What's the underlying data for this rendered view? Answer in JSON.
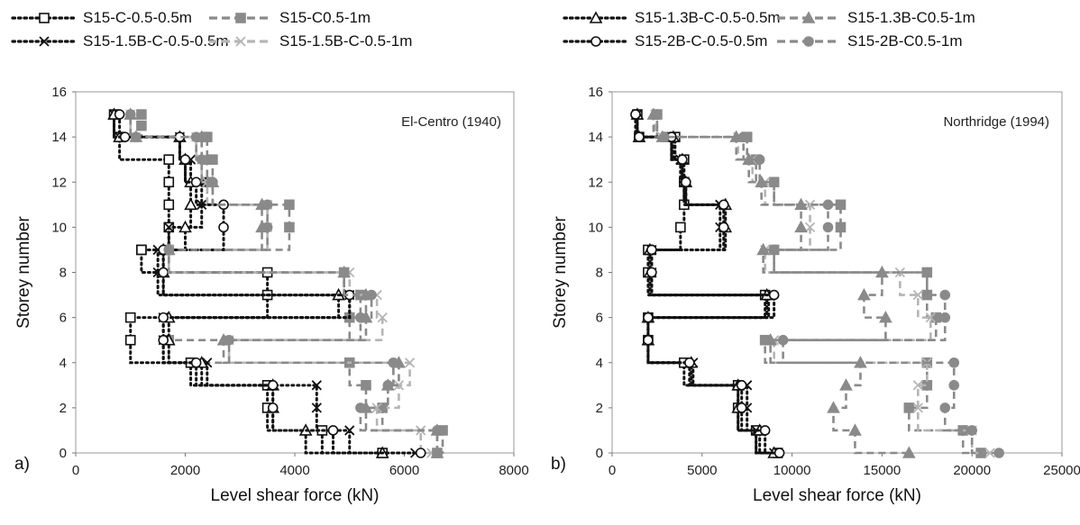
{
  "legend": [
    {
      "label": "S15-C-0.5-0.5m",
      "style": "dotted",
      "marker": "square-open",
      "color": "#111111"
    },
    {
      "label": "S15-C0.5-1m",
      "style": "dashed",
      "marker": "square",
      "color": "#8a8a8a"
    },
    {
      "label": "S15-1.5B-C-0.5-0.5m",
      "style": "dotted",
      "marker": "x",
      "color": "#111111"
    },
    {
      "label": "S15-1.5B-C-0.5-1m",
      "style": "dashed",
      "marker": "x",
      "color": "#b5b5b5"
    },
    {
      "label": "S15-1.3B-C-0.5-0.5m",
      "style": "dotted",
      "marker": "triangle-open",
      "color": "#111111"
    },
    {
      "label": "S15-1.3B-C0.5-1m",
      "style": "dashed",
      "marker": "triangle",
      "color": "#8a8a8a"
    },
    {
      "label": "S15-2B-C-0.5-0.5m",
      "style": "dotted",
      "marker": "circle-open",
      "color": "#111111"
    },
    {
      "label": "S15-2B-C0.5-1m",
      "style": "dashed",
      "marker": "circle",
      "color": "#8a8a8a"
    }
  ],
  "chart_data": [
    {
      "type": "line",
      "panel_label": "a)",
      "annotation": "El-Centro (1940)",
      "xlabel": "Level shear force (kN)",
      "ylabel": "Storey number",
      "xlim": [
        0,
        8000
      ],
      "ylim": [
        0,
        16
      ],
      "xticks": [
        "0",
        "2000",
        "4000",
        "6000",
        "8000"
      ],
      "yticks": [
        "0",
        "2",
        "4",
        "6",
        "8",
        "10",
        "12",
        "14",
        "16"
      ],
      "grid": false,
      "series": [
        {
          "name": "S15-C-0.5-0.5m",
          "x": [
            5600,
            4500,
            3500,
            3500,
            2100,
            1000,
            1000,
            3500,
            3500,
            1200,
            1200,
            1700,
            1700,
            1700,
            1700,
            800,
            700
          ],
          "y": [
            0,
            1,
            2,
            3,
            4,
            5,
            6,
            7,
            8,
            9,
            9,
            10,
            11,
            12,
            13,
            14,
            15
          ]
        },
        {
          "name": "S15-C0.5-1m",
          "x": [
            6600,
            6700,
            5600,
            5300,
            5000,
            1700,
            5000,
            5200,
            4900,
            1700,
            3900,
            3900,
            2400,
            2500,
            2400,
            1200,
            1200
          ],
          "y": [
            0,
            1,
            2,
            3,
            4,
            5,
            6,
            7,
            8,
            9,
            10,
            11,
            12,
            13,
            14,
            14.5,
            15
          ]
        },
        {
          "name": "S15-1.5B-C-0.5-0.5m",
          "x": [
            6200,
            5000,
            4400,
            4400,
            2400,
            1600,
            1600,
            5000,
            1500,
            1500,
            1700,
            2300,
            2300,
            2100,
            1900,
            800,
            700
          ],
          "y": [
            0,
            1,
            2,
            3,
            4,
            5,
            6,
            7,
            8,
            9,
            10,
            11,
            12,
            13,
            14,
            14,
            15
          ]
        },
        {
          "name": "S15-1.5B-C-0.5-1m",
          "x": [
            6500,
            6300,
            5500,
            5900,
            6100,
            2800,
            5600,
            5500,
            5000,
            1700,
            3500,
            3500,
            2400,
            2300,
            2200,
            1100,
            1000
          ],
          "y": [
            0,
            1,
            2,
            3,
            4,
            5,
            6,
            7,
            8,
            9,
            10,
            11,
            12,
            13,
            14,
            14,
            15
          ]
        },
        {
          "name": "S15-1.3B-C-0.5-0.5m",
          "x": [
            5600,
            4200,
            3600,
            3600,
            2300,
            1700,
            1700,
            4800,
            1600,
            1600,
            2000,
            2100,
            2100,
            2000,
            1900,
            800,
            700
          ],
          "y": [
            0,
            1,
            2,
            3,
            4,
            5,
            6,
            7,
            8,
            9,
            10,
            11,
            12,
            13,
            14,
            14,
            15
          ]
        },
        {
          "name": "S15-1.3B-C0.5-1m",
          "x": [
            6600,
            6600,
            5300,
            5700,
            5900,
            2700,
            5300,
            5300,
            4900,
            1700,
            3400,
            3400,
            2500,
            2400,
            2300,
            1100,
            1000
          ],
          "y": [
            0,
            1,
            2,
            3,
            4,
            5,
            6,
            7,
            8,
            9,
            10,
            11,
            12,
            13,
            14,
            14,
            15
          ]
        },
        {
          "name": "S15-2B-C-0.5-0.5m",
          "x": [
            6300,
            4700,
            3600,
            3600,
            2200,
            1600,
            1600,
            5000,
            1600,
            1600,
            2700,
            2700,
            2200,
            2000,
            1900,
            900,
            800
          ],
          "y": [
            0,
            1,
            2,
            3,
            4,
            5,
            6,
            7,
            8,
            9,
            10,
            11,
            12,
            13,
            14,
            14,
            15
          ]
        },
        {
          "name": "S15-2B-C0.5-1m",
          "x": [
            6600,
            6600,
            5200,
            5700,
            5800,
            2800,
            5200,
            5400,
            4900,
            1700,
            3500,
            3500,
            2500,
            2300,
            2200,
            1100,
            1000
          ],
          "y": [
            0,
            1,
            2,
            3,
            4,
            5,
            6,
            7,
            8,
            9,
            10,
            11,
            12,
            13,
            14,
            14,
            15
          ]
        }
      ]
    },
    {
      "type": "line",
      "panel_label": "b)",
      "annotation": "Northridge (1994)",
      "xlabel": "Level shear force (kN)",
      "ylabel": "Storey number",
      "xlim": [
        0,
        25000
      ],
      "ylim": [
        0,
        16
      ],
      "xticks": [
        "0",
        "5000",
        "10000",
        "15000",
        "20000",
        "25000"
      ],
      "yticks": [
        "0",
        "2",
        "4",
        "6",
        "8",
        "10",
        "12",
        "14",
        "16"
      ],
      "grid": false,
      "series": [
        {
          "name": "S15-C-0.5-0.5m",
          "x": [
            9200,
            8000,
            7000,
            7000,
            4000,
            2000,
            2000,
            8500,
            2000,
            2000,
            3800,
            4000,
            4000,
            4000,
            3500,
            1500,
            1400
          ],
          "y": [
            0,
            1,
            2,
            3,
            4,
            5,
            6,
            7,
            8,
            9,
            10,
            11,
            12,
            13,
            14,
            14,
            15
          ]
        },
        {
          "name": "S15-C0.5-1m",
          "x": [
            20500,
            19500,
            16500,
            17500,
            17500,
            8500,
            18000,
            17500,
            17500,
            9000,
            12700,
            12700,
            9000,
            8000,
            7500,
            3000,
            2500
          ],
          "y": [
            0,
            1,
            2,
            3,
            4,
            5,
            6,
            7,
            8,
            9,
            10,
            11,
            12,
            13,
            14,
            14,
            15
          ]
        },
        {
          "name": "S15-1.5B-C-0.5-0.5m",
          "x": [
            9000,
            8000,
            7500,
            7500,
            4500,
            2000,
            2000,
            8700,
            2200,
            2200,
            6000,
            6000,
            4000,
            3800,
            3300,
            1500,
            1400
          ],
          "y": [
            0,
            1,
            2,
            3,
            4,
            5,
            6,
            7,
            8,
            9,
            10,
            11,
            12,
            13,
            14,
            14,
            15
          ]
        },
        {
          "name": "S15-1.5B-C-0.5-1m",
          "x": [
            21000,
            20000,
            17000,
            17000,
            17500,
            9000,
            17700,
            17000,
            16000,
            8500,
            11000,
            11000,
            8500,
            7800,
            7000,
            2800,
            2400
          ],
          "y": [
            0,
            1,
            2,
            3,
            4,
            5,
            6,
            7,
            8,
            9,
            10,
            11,
            12,
            13,
            14,
            14,
            15
          ]
        },
        {
          "name": "S15-1.3B-C-0.5-0.5m",
          "x": [
            9000,
            8200,
            7000,
            7000,
            4400,
            2000,
            2000,
            8600,
            2100,
            2100,
            6300,
            6300,
            4100,
            3900,
            3400,
            1500,
            1400
          ],
          "y": [
            0,
            1,
            2,
            3,
            4,
            5,
            6,
            7,
            8,
            9,
            10,
            11,
            12,
            13,
            14,
            14,
            15
          ]
        },
        {
          "name": "S15-1.3B-C0.5-1m",
          "x": [
            16500,
            13500,
            12300,
            13000,
            13800,
            8800,
            15200,
            14000,
            15000,
            8400,
            10500,
            10500,
            8300,
            7600,
            6900,
            2800,
            2300
          ],
          "y": [
            0,
            1,
            2,
            3,
            4,
            5,
            6,
            7,
            8,
            9,
            10,
            11,
            12,
            13,
            14,
            14,
            15
          ]
        },
        {
          "name": "S15-2B-C-0.5-0.5m",
          "x": [
            9300,
            8500,
            7200,
            7200,
            4300,
            2000,
            2000,
            9000,
            2200,
            2200,
            6200,
            6200,
            4100,
            3900,
            3300,
            1500,
            1300
          ],
          "y": [
            0,
            1,
            2,
            3,
            4,
            5,
            6,
            7,
            8,
            9,
            10,
            11,
            12,
            13,
            14,
            14,
            15
          ]
        },
        {
          "name": "S15-2B-C0.5-1m",
          "x": [
            21500,
            20000,
            18500,
            19000,
            19000,
            9500,
            18500,
            18500,
            17500,
            9000,
            12000,
            12000,
            9000,
            8200,
            7300,
            2900,
            2500
          ],
          "y": [
            0,
            1,
            2,
            3,
            4,
            5,
            6,
            7,
            8,
            9,
            10,
            11,
            12,
            13,
            14,
            14,
            15
          ]
        }
      ]
    }
  ]
}
